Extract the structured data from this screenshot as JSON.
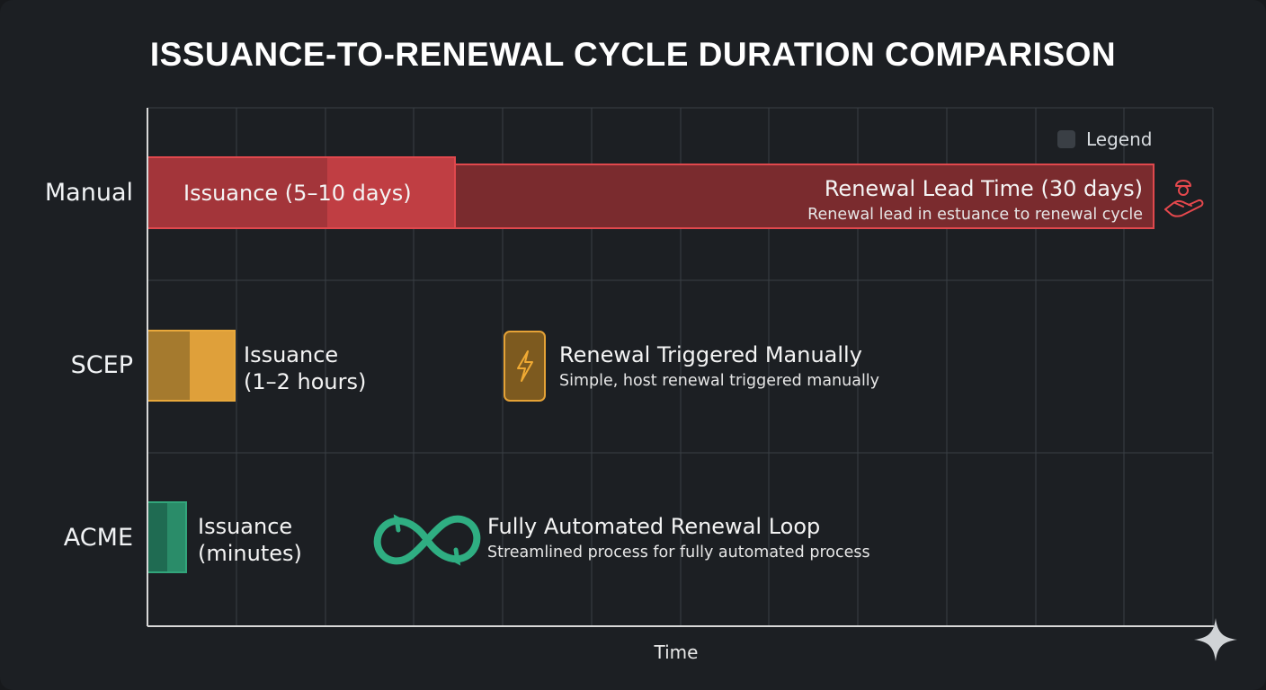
{
  "title": "ISSUANCE-TO-RENEWAL CYCLE DURATION COMPARISON",
  "legend_label": "Legend",
  "colors": {
    "manual": "#d9454a",
    "scep": "#e5a236",
    "acme": "#2f9e76",
    "background": "#1c1f23",
    "grid": "#3a3f44"
  },
  "chart_data": {
    "type": "bar",
    "xlabel": "Time",
    "categories": [
      "Manual",
      "SCEP",
      "ACME"
    ],
    "grid": true,
    "legend_placement": "top-right",
    "rows": [
      {
        "category": "Manual",
        "issuance_label": "Issuance (5–10 days)",
        "renewal_title": "Renewal Lead Time (30 days)",
        "renewal_subtitle": "Renewal lead in estuance to renewal cycle",
        "icon": "person-hand-icon"
      },
      {
        "category": "SCEP",
        "issuance_line1": "Issuance",
        "issuance_line2": "(1–2 hours)",
        "renewal_title": "Renewal Triggered Manually",
        "renewal_subtitle": "Simple, host renewal triggered manually",
        "icon": "lightning-icon"
      },
      {
        "category": "ACME",
        "issuance_line1": "Issuance",
        "issuance_line2": "(minutes)",
        "renewal_title": "Fully Automated Renewal Loop",
        "renewal_subtitle": "Streamlined process for fully automated process",
        "icon": "infinity-loop-icon"
      }
    ]
  }
}
